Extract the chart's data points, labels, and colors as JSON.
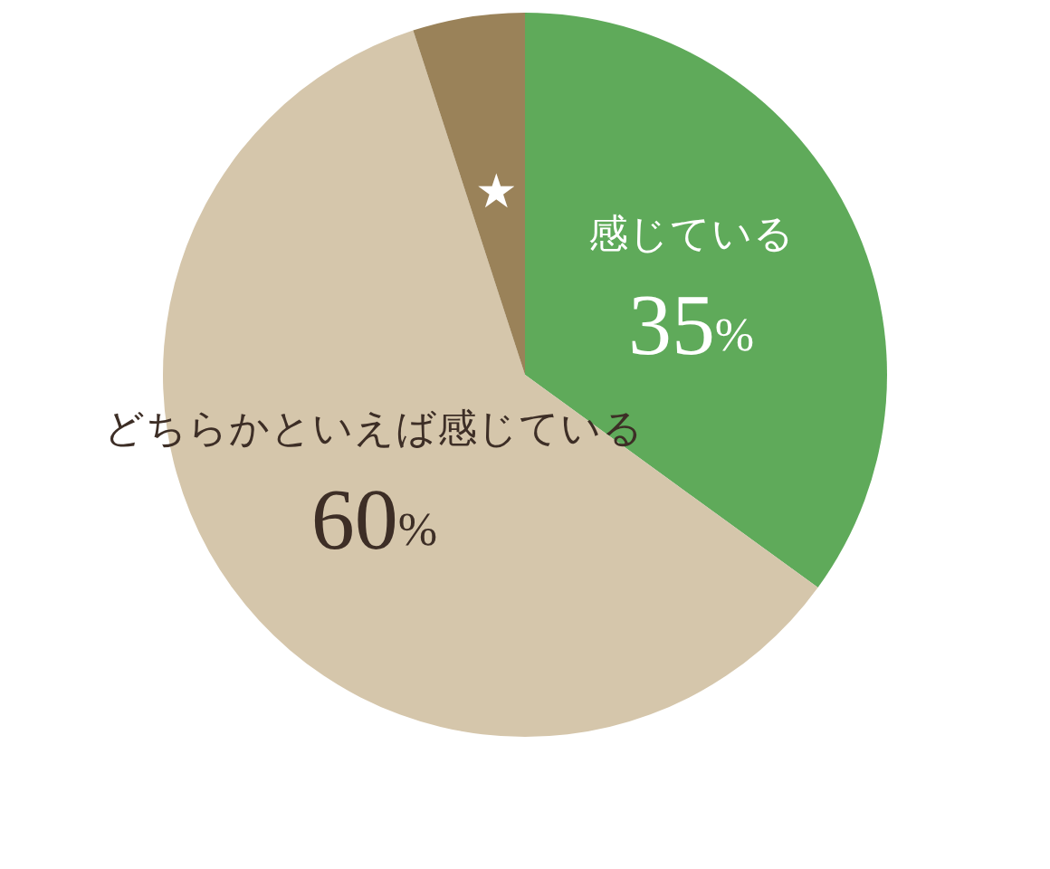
{
  "chart_data": {
    "type": "pie",
    "categories": [
      "感じている",
      "どちらかといえば感じている",
      "★"
    ],
    "values": [
      35,
      60,
      5
    ],
    "colors": [
      "#5faa5a",
      "#d5c6ab",
      "#9a8259"
    ],
    "value_labels": [
      "35%",
      "60%",
      null
    ]
  }
}
